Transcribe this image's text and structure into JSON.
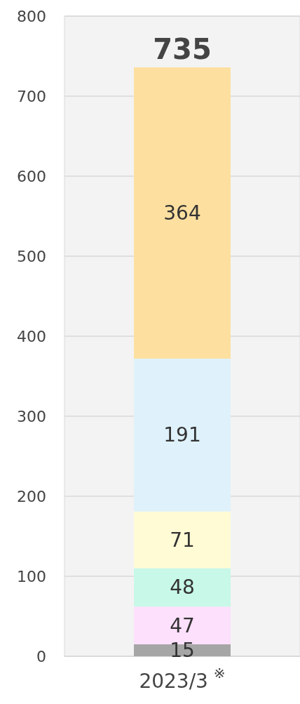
{
  "chart_data": {
    "type": "bar",
    "stacked": true,
    "categories": [
      "2023/3$^{※}$"
    ],
    "series": [
      {
        "color": "#a6a6a6",
        "values": [
          15
        ]
      },
      {
        "color": "#fde0fb",
        "values": [
          47
        ]
      },
      {
        "color": "#c8f8e8",
        "values": [
          48
        ]
      },
      {
        "color": "#fffbd5",
        "values": [
          71
        ]
      },
      {
        "color": "#dff2fb",
        "values": [
          191
        ]
      },
      {
        "color": "#fde0a0",
        "values": [
          364
        ]
      }
    ],
    "totals": [
      "735"
    ],
    "data_labels": true,
    "ylim": [
      0,
      800
    ],
    "yticks": [
      0,
      100,
      200,
      300,
      400,
      500,
      600,
      700,
      800
    ],
    "grid": "y"
  }
}
